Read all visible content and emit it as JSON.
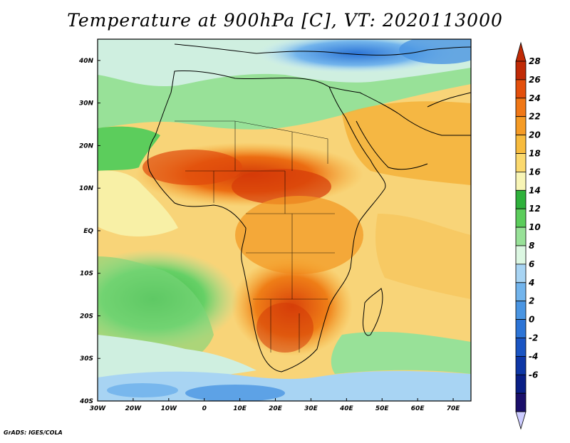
{
  "title": "Temperature at 900hPa [C], VT: 2020113000",
  "credit": "GrADS: IGES/COLA",
  "map": {
    "lat_labels": [
      "40N",
      "30N",
      "20N",
      "10N",
      "EQ",
      "10S",
      "20S",
      "30S",
      "40S"
    ],
    "lat_values": [
      40,
      30,
      20,
      10,
      0,
      -10,
      -20,
      -30,
      -40
    ],
    "lon_labels": [
      "30W",
      "20W",
      "10W",
      "0",
      "10E",
      "20E",
      "30E",
      "40E",
      "50E",
      "60E",
      "70E"
    ],
    "lon_values": [
      -30,
      -20,
      -10,
      0,
      10,
      20,
      30,
      40,
      50,
      60,
      70
    ],
    "lon_range": [
      -30,
      75
    ],
    "lat_range": [
      -40,
      45
    ]
  },
  "colorbar": {
    "levels": [
      "28",
      "26",
      "24",
      "22",
      "20",
      "18",
      "16",
      "14",
      "12",
      "10",
      "8",
      "6",
      "4",
      "2",
      "0",
      "-2",
      "-4",
      "-6"
    ],
    "colors": [
      "#c02a06",
      "#e34f0c",
      "#f07716",
      "#f59b25",
      "#f7bb3e",
      "#fbd96e",
      "#f8f5b6",
      "#2fb13c",
      "#5ccd5c",
      "#98e198",
      "#dcf7e2",
      "#a8d4f3",
      "#72b4ec",
      "#4a95e2",
      "#2c74d6",
      "#1a55c3",
      "#0e37a6",
      "#0a1f86",
      "#1a0f6a"
    ],
    "over_color": "#c02a06",
    "under_color": "#ccccff"
  }
}
